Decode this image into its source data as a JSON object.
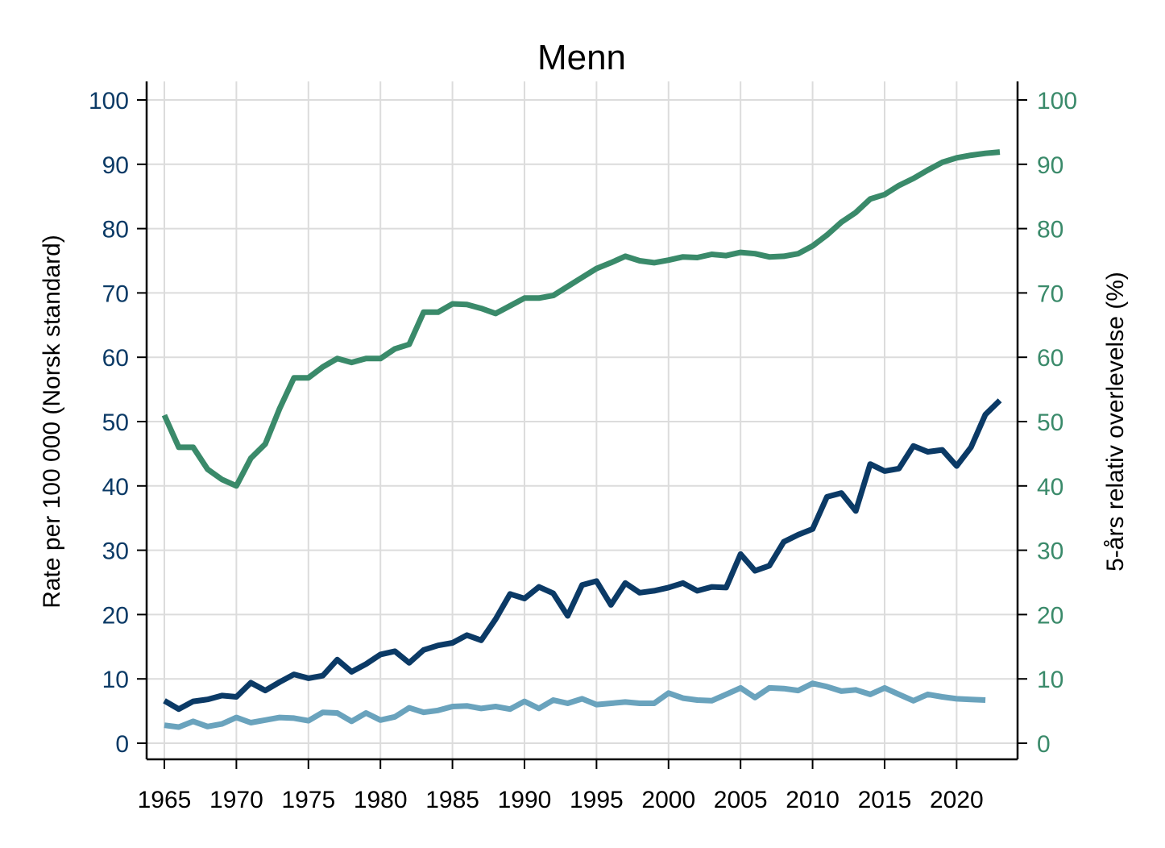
{
  "chart_data": {
    "type": "line",
    "title": "Menn",
    "ylabel_left": "Rate per 100 000 (Norsk standard)",
    "ylabel_right": "5-års relativ overlevelse (%)",
    "ylim": [
      0,
      100
    ],
    "xlim": [
      1965,
      2023
    ],
    "grid": true,
    "y_ticks": [
      "0",
      "10",
      "20",
      "30",
      "40",
      "50",
      "60",
      "70",
      "80",
      "90",
      "100"
    ],
    "x_ticks": [
      "1965",
      "1970",
      "1975",
      "1980",
      "1985",
      "1990",
      "1995",
      "2000",
      "2005",
      "2010",
      "2015",
      "2020"
    ],
    "colors": {
      "left_axis_text": "#0b3a66",
      "right_axis_text": "#3a8a6a",
      "grid": "#dcdcdc"
    },
    "series": [
      {
        "color": "#3a8a6a",
        "axis": "right",
        "x": [
          1965,
          1966,
          1967,
          1968,
          1969,
          1970,
          1971,
          1972,
          1973,
          1974,
          1975,
          1976,
          1977,
          1978,
          1979,
          1980,
          1981,
          1982,
          1983,
          1984,
          1985,
          1986,
          1987,
          1988,
          1989,
          1990,
          1991,
          1992,
          1993,
          1994,
          1995,
          1996,
          1997,
          1998,
          1999,
          2000,
          2001,
          2002,
          2003,
          2004,
          2005,
          2006,
          2007,
          2008,
          2009,
          2010,
          2011,
          2012,
          2013,
          2014,
          2015,
          2016,
          2017,
          2018,
          2019,
          2020,
          2021,
          2022,
          2023
        ],
        "values": [
          51,
          46,
          46,
          42.6,
          41,
          40,
          44.3,
          46.5,
          52,
          56.8,
          56.8,
          58.5,
          59.8,
          59.2,
          59.8,
          59.8,
          61.3,
          62,
          67,
          67,
          68.3,
          68.2,
          67.6,
          66.8,
          68,
          69.2,
          69.2,
          69.6,
          71,
          72.4,
          73.8,
          74.7,
          75.7,
          75,
          74.7,
          75.1,
          75.6,
          75.5,
          76,
          75.8,
          76.3,
          76.1,
          75.6,
          75.7,
          76.1,
          77.3,
          79,
          81,
          82.5,
          84.6,
          85.3,
          86.7,
          87.8,
          89.1,
          90.3,
          91,
          91.4,
          91.7,
          91.9
        ]
      },
      {
        "color": "#0b3a66",
        "axis": "left",
        "x": [
          1965,
          1966,
          1967,
          1968,
          1969,
          1970,
          1971,
          1972,
          1973,
          1974,
          1975,
          1976,
          1977,
          1978,
          1979,
          1980,
          1981,
          1982,
          1983,
          1984,
          1985,
          1986,
          1987,
          1988,
          1989,
          1990,
          1991,
          1992,
          1993,
          1994,
          1995,
          1996,
          1997,
          1998,
          1999,
          2000,
          2001,
          2002,
          2003,
          2004,
          2005,
          2006,
          2007,
          2008,
          2009,
          2010,
          2011,
          2012,
          2013,
          2014,
          2015,
          2016,
          2017,
          2018,
          2019,
          2020,
          2021,
          2022,
          2023
        ],
        "values": [
          6.6,
          5.3,
          6.5,
          6.8,
          7.4,
          7.2,
          9.4,
          8.2,
          9.5,
          10.7,
          10.1,
          10.5,
          13,
          11.1,
          12.3,
          13.8,
          14.3,
          12.5,
          14.5,
          15.2,
          15.6,
          16.8,
          16,
          19.3,
          23.2,
          22.5,
          24.3,
          23.3,
          19.8,
          24.6,
          25.2,
          21.5,
          24.9,
          23.4,
          23.7,
          24.2,
          24.9,
          23.7,
          24.3,
          24.2,
          29.4,
          26.8,
          27.6,
          31.3,
          32.4,
          33.3,
          38.3,
          38.9,
          36.1,
          43.4,
          42.3,
          42.7,
          46.2,
          45.3,
          45.6,
          43.1,
          46,
          51.1,
          53.3
        ]
      },
      {
        "color": "#6aa3bd",
        "axis": "left",
        "x": [
          1965,
          1966,
          1967,
          1968,
          1969,
          1970,
          1971,
          1972,
          1973,
          1974,
          1975,
          1976,
          1977,
          1978,
          1979,
          1980,
          1981,
          1982,
          1983,
          1984,
          1985,
          1986,
          1987,
          1988,
          1989,
          1990,
          1991,
          1992,
          1993,
          1994,
          1995,
          1996,
          1997,
          1998,
          1999,
          2000,
          2001,
          2002,
          2003,
          2004,
          2005,
          2006,
          2007,
          2008,
          2009,
          2010,
          2011,
          2012,
          2013,
          2014,
          2015,
          2016,
          2017,
          2018,
          2019,
          2020,
          2021,
          2022
        ],
        "values": [
          2.8,
          2.5,
          3.4,
          2.6,
          3,
          4,
          3.2,
          3.6,
          4,
          3.9,
          3.5,
          4.8,
          4.7,
          3.4,
          4.7,
          3.6,
          4.1,
          5.5,
          4.8,
          5.1,
          5.7,
          5.8,
          5.4,
          5.7,
          5.3,
          6.5,
          5.4,
          6.7,
          6.2,
          6.9,
          6,
          6.2,
          6.4,
          6.2,
          6.2,
          7.8,
          7,
          6.7,
          6.6,
          7.6,
          8.6,
          7.1,
          8.6,
          8.5,
          8.2,
          9.3,
          8.8,
          8.1,
          8.3,
          7.6,
          8.6,
          7.6,
          6.6,
          7.6,
          7.2,
          6.9,
          6.8,
          6.7
        ]
      }
    ]
  }
}
